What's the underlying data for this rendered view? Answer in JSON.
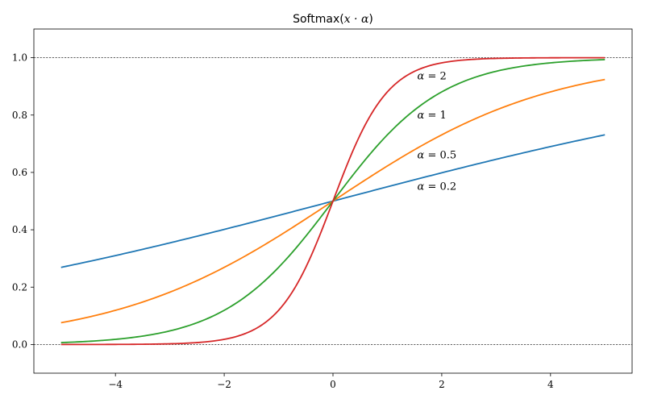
{
  "chart_data": {
    "type": "line",
    "title": {
      "prefix": "Softmax(",
      "math": "x · α",
      "suffix": ")"
    },
    "xlabel": "",
    "ylabel": "",
    "xlim": [
      -5.5,
      5.5
    ],
    "ylim": [
      -0.1,
      1.1
    ],
    "x_ticks": [
      -4,
      -2,
      0,
      2,
      4
    ],
    "x_tick_labels": [
      "−4",
      "−2",
      "0",
      "2",
      "4"
    ],
    "y_ticks": [
      0.0,
      0.2,
      0.4,
      0.6,
      0.8,
      1.0
    ],
    "y_tick_labels": [
      "0.0",
      "0.2",
      "0.4",
      "0.6",
      "0.8",
      "1.0"
    ],
    "grid": false,
    "reference_lines": [
      {
        "y": 0.0,
        "style": "dashed",
        "color": "#000000"
      },
      {
        "y": 1.0,
        "style": "dashed",
        "color": "#000000"
      }
    ],
    "x_range": [
      -5,
      5
    ],
    "series": [
      {
        "alpha": 0.2,
        "color": "#1f77b4",
        "x": [
          -5,
          -4,
          -3,
          -2,
          -1,
          0,
          1,
          2,
          3,
          4,
          5
        ],
        "y": [
          0.269,
          0.31,
          0.354,
          0.401,
          0.45,
          0.5,
          0.55,
          0.599,
          0.646,
          0.69,
          0.731
        ]
      },
      {
        "alpha": 0.5,
        "color": "#ff7f0e",
        "x": [
          -5,
          -4,
          -3,
          -2,
          -1,
          0,
          1,
          2,
          3,
          4,
          5
        ],
        "y": [
          0.076,
          0.119,
          0.182,
          0.269,
          0.378,
          0.5,
          0.622,
          0.731,
          0.818,
          0.881,
          0.924
        ]
      },
      {
        "alpha": 1,
        "color": "#2ca02c",
        "x": [
          -5,
          -4,
          -3,
          -2,
          -1,
          0,
          1,
          2,
          3,
          4,
          5
        ],
        "y": [
          0.007,
          0.018,
          0.047,
          0.119,
          0.269,
          0.5,
          0.731,
          0.881,
          0.953,
          0.982,
          0.993
        ]
      },
      {
        "alpha": 2,
        "color": "#d62728",
        "x": [
          -5,
          -4,
          -3,
          -2,
          -1,
          -0.5,
          0,
          0.5,
          1,
          2,
          3,
          4,
          5
        ],
        "y": [
          0.0,
          0.0,
          0.002,
          0.018,
          0.119,
          0.269,
          0.5,
          0.731,
          0.881,
          0.982,
          0.998,
          1.0,
          1.0
        ]
      }
    ],
    "annotations": [
      {
        "var": "α",
        "eq": " = 2",
        "x": 1.55,
        "y": 0.935
      },
      {
        "var": "α",
        "eq": " = 1",
        "x": 1.55,
        "y": 0.8
      },
      {
        "var": "α",
        "eq": " = 0.5",
        "x": 1.55,
        "y": 0.66
      },
      {
        "var": "α",
        "eq": " = 0.2",
        "x": 1.55,
        "y": 0.55
      }
    ]
  }
}
